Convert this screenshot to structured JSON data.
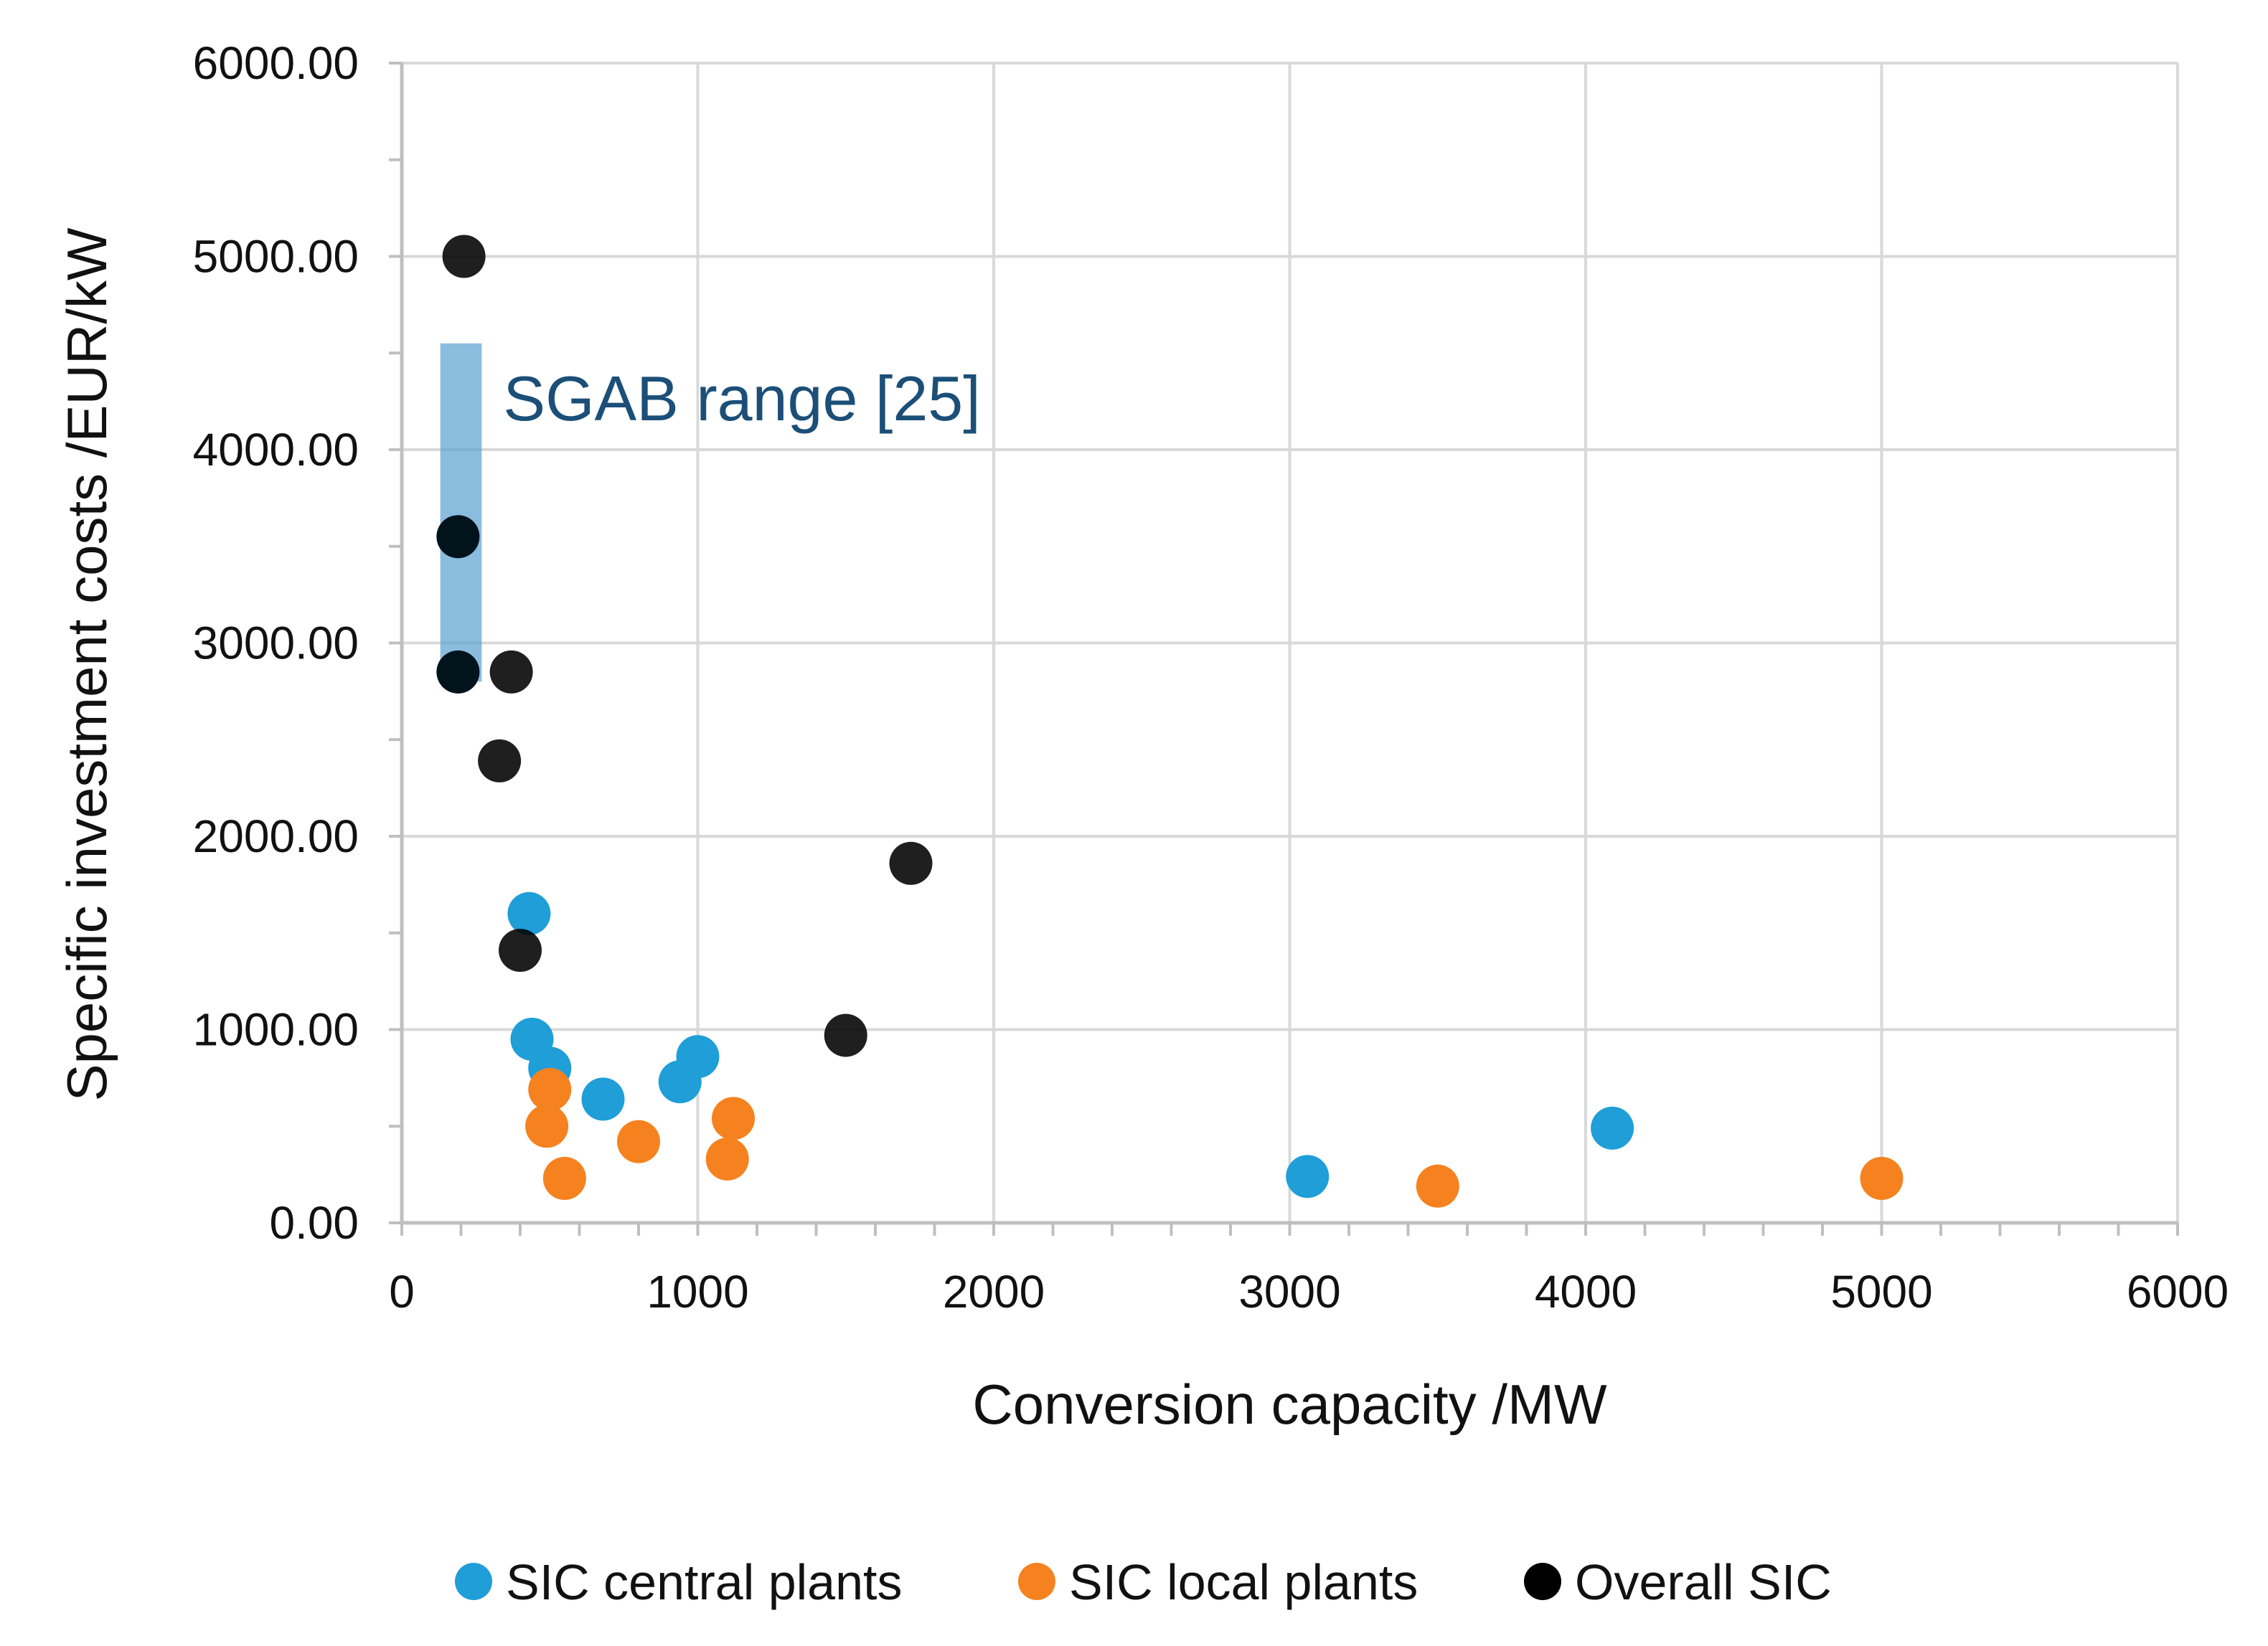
{
  "chart_data": {
    "type": "scatter",
    "title": "",
    "xlabel": "Conversion capacity /MW",
    "ylabel": "Specific investment costs /EUR/kW",
    "xlim": [
      0,
      6000
    ],
    "ylim": [
      0,
      6000
    ],
    "x_ticks": [
      0,
      1000,
      2000,
      3000,
      4000,
      5000,
      6000
    ],
    "x_tick_labels": [
      "0",
      "1000",
      "2000",
      "3000",
      "4000",
      "5000",
      "6000"
    ],
    "y_ticks": [
      0,
      1000,
      2000,
      3000,
      4000,
      5000,
      6000
    ],
    "y_tick_labels": [
      "0.00",
      "1000.00",
      "2000.00",
      "3000.00",
      "4000.00",
      "5000.00",
      "6000.00"
    ],
    "grid": true,
    "legend_position": "bottom",
    "series": [
      {
        "name": "SIC central plants",
        "color": "#1f9ed8",
        "points": [
          {
            "x": 190,
            "y": 3550
          },
          {
            "x": 190,
            "y": 2850
          },
          {
            "x": 430,
            "y": 1600
          },
          {
            "x": 440,
            "y": 950
          },
          {
            "x": 500,
            "y": 800
          },
          {
            "x": 680,
            "y": 640
          },
          {
            "x": 940,
            "y": 730
          },
          {
            "x": 1000,
            "y": 860
          },
          {
            "x": 3060,
            "y": 240
          },
          {
            "x": 4090,
            "y": 490
          }
        ]
      },
      {
        "name": "SIC local plants",
        "color": "#f5821f",
        "points": [
          {
            "x": 500,
            "y": 690
          },
          {
            "x": 490,
            "y": 500
          },
          {
            "x": 550,
            "y": 230
          },
          {
            "x": 800,
            "y": 420
          },
          {
            "x": 1100,
            "y": 330
          },
          {
            "x": 1120,
            "y": 540
          },
          {
            "x": 3500,
            "y": 190
          },
          {
            "x": 5000,
            "y": 230
          }
        ]
      },
      {
        "name": "Overall SIC",
        "color": "#000000",
        "points": [
          {
            "x": 210,
            "y": 5000
          },
          {
            "x": 190,
            "y": 3550
          },
          {
            "x": 190,
            "y": 2850
          },
          {
            "x": 370,
            "y": 2850
          },
          {
            "x": 330,
            "y": 2390
          },
          {
            "x": 400,
            "y": 1410
          },
          {
            "x": 1500,
            "y": 970
          },
          {
            "x": 1720,
            "y": 1860
          }
        ]
      }
    ],
    "annotations": [
      {
        "type": "range-bar",
        "label": "SGAB range [25]",
        "x_from": 130,
        "x_to": 270,
        "y_from": 2800,
        "y_to": 4550,
        "color": "#5a9fd0",
        "text_color": "#1b4f78"
      }
    ]
  }
}
